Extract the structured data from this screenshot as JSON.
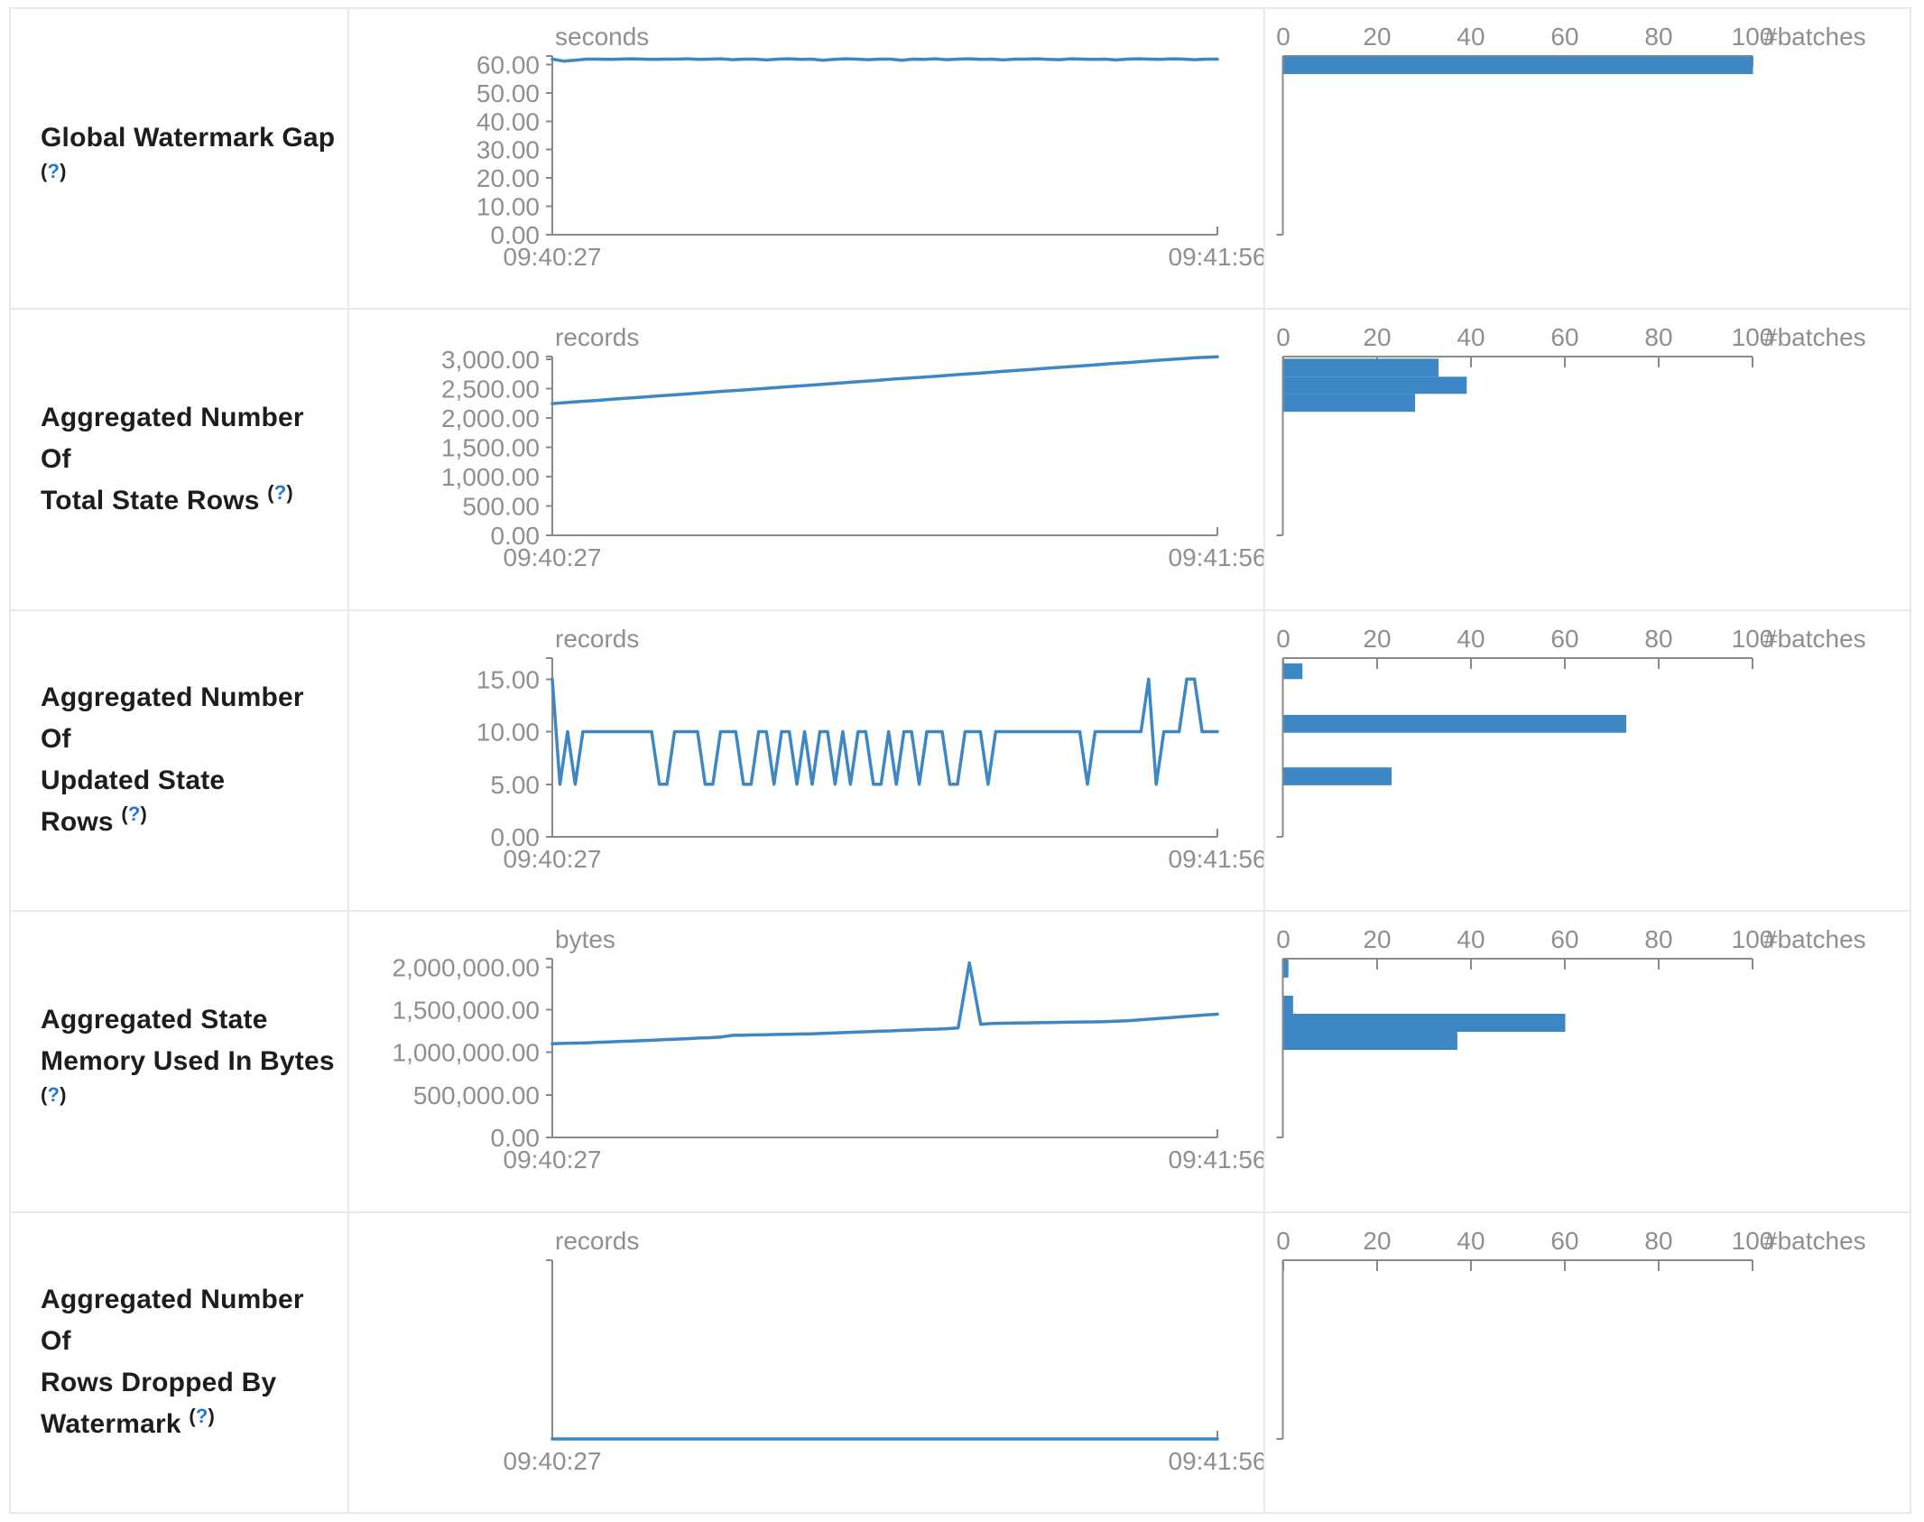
{
  "help_marker": {
    "open": "(",
    "q": "?",
    "close": ")"
  },
  "time_axis": {
    "start": "09:40:27",
    "end": "09:41:56"
  },
  "hist_axis": {
    "ticks": [
      "0",
      "20",
      "40",
      "60",
      "80",
      "100"
    ],
    "tick_values": [
      0,
      20,
      40,
      60,
      80,
      100
    ],
    "label": "#batches",
    "max": 100
  },
  "colors": {
    "accent": "#3d87c4",
    "axis": "#8a8a8a",
    "tick_text": "#8f8f8f",
    "label_text": "#1d1d1f",
    "help_link": "#2577d4",
    "border": "#e7e9eb"
  },
  "chart_data": [
    {
      "type": "line+histogram",
      "label_lines": [
        "Global Watermark Gap"
      ],
      "help_own_line": true,
      "unit": "seconds",
      "axis_max": 63,
      "y_tick_values": [
        0,
        10,
        20,
        30,
        40,
        50,
        60
      ],
      "y_tick_labels": [
        "0.00",
        "10.00",
        "20.00",
        "30.00",
        "40.00",
        "50.00",
        "60.00"
      ],
      "x_range": [
        "09:40:27",
        "09:41:56"
      ],
      "timeline": [
        61.9,
        61.2,
        61.5,
        61.9,
        61.9,
        61.8,
        61.9,
        62.0,
        61.9,
        61.8,
        61.9,
        61.9,
        62.0,
        61.8,
        61.9,
        62.0,
        61.7,
        61.9,
        61.9,
        61.6,
        61.9,
        62.0,
        61.8,
        61.9,
        61.5,
        61.8,
        62.0,
        61.9,
        61.7,
        61.9,
        61.9,
        61.5,
        61.9,
        61.8,
        62.0,
        61.7,
        61.9,
        62.0,
        61.8,
        61.9,
        61.6,
        61.9,
        61.9,
        62.0,
        61.8,
        61.7,
        62.0,
        61.9,
        61.8,
        61.9,
        61.6,
        61.9,
        62.0,
        61.9,
        61.8,
        62.0,
        61.9,
        61.7,
        61.9,
        61.9
      ],
      "histogram_bins": [
        {
          "hi": 62.8,
          "lo": 56.6,
          "count": 100
        }
      ]
    },
    {
      "type": "line+histogram",
      "label_lines": [
        "Aggregated Number Of",
        "Total State Rows"
      ],
      "help_own_line": false,
      "unit": "records",
      "axis_max": 3050,
      "y_tick_values": [
        0,
        500,
        1000,
        1500,
        2000,
        2500,
        3000
      ],
      "y_tick_labels": [
        "0.00",
        "500.00",
        "1,000.00",
        "1,500.00",
        "2,000.00",
        "2,500.00",
        "3,000.00"
      ],
      "x_range": [
        "09:40:27",
        "09:41:56"
      ],
      "timeline": [
        2248,
        2275,
        2300,
        2328,
        2352,
        2380,
        2405,
        2432,
        2458,
        2482,
        2510,
        2535,
        2562,
        2588,
        2615,
        2640,
        2668,
        2692,
        2718,
        2745,
        2770,
        2798,
        2822,
        2850,
        2875,
        2900,
        2928,
        2952,
        2980,
        3005,
        3030,
        3046
      ],
      "histogram_bins": [
        {
          "hi": 3015,
          "lo": 2707,
          "count": 33
        },
        {
          "hi": 2707,
          "lo": 2415,
          "count": 39
        },
        {
          "hi": 2415,
          "lo": 2107,
          "count": 28
        }
      ]
    },
    {
      "type": "line+histogram",
      "label_lines": [
        "Aggregated Number Of",
        "Updated State Rows"
      ],
      "help_own_line": false,
      "unit": "records",
      "axis_max": 17,
      "y_tick_values": [
        0,
        5,
        10,
        15
      ],
      "y_tick_labels": [
        "0.00",
        "5.00",
        "10.00",
        "15.00"
      ],
      "x_range": [
        "09:40:27",
        "09:41:56"
      ],
      "timeline": [
        15,
        5,
        10,
        5,
        10,
        10,
        10,
        10,
        10,
        10,
        10,
        10,
        10,
        10,
        5,
        5,
        10,
        10,
        10,
        10,
        5,
        5,
        10,
        10,
        10,
        5,
        5,
        10,
        10,
        5,
        10,
        10,
        5,
        10,
        5,
        10,
        10,
        5,
        10,
        5,
        10,
        10,
        5,
        5,
        10,
        5,
        10,
        10,
        5,
        10,
        10,
        10,
        5,
        5,
        10,
        10,
        10,
        5,
        10,
        10,
        10,
        10,
        10,
        10,
        10,
        10,
        10,
        10,
        10,
        10,
        5,
        10,
        10,
        10,
        10,
        10,
        10,
        10,
        15,
        5,
        10,
        10,
        10,
        15,
        15,
        10,
        10,
        10
      ],
      "histogram_bins": [
        {
          "hi": 16.5,
          "lo": 15.0,
          "count": 4
        },
        {
          "hi": 11.6,
          "lo": 9.9,
          "count": 73
        },
        {
          "hi": 6.6,
          "lo": 4.9,
          "count": 23
        }
      ]
    },
    {
      "type": "line+histogram",
      "label_lines": [
        "Aggregated State",
        "Memory Used In Bytes"
      ],
      "help_own_line": true,
      "unit": "bytes",
      "axis_max": 2100000,
      "y_tick_values": [
        0,
        500000,
        1000000,
        1500000,
        2000000
      ],
      "y_tick_labels": [
        "0.00",
        "500,000.00",
        "1,000,000.00",
        "1,500,000.00",
        "2,000,000.00"
      ],
      "x_range": [
        "09:40:27",
        "09:41:56"
      ],
      "timeline": [
        1100000,
        1105000,
        1108000,
        1112000,
        1118000,
        1122000,
        1128000,
        1132000,
        1138000,
        1142000,
        1150000,
        1155000,
        1160000,
        1168000,
        1172000,
        1180000,
        1200000,
        1202000,
        1205000,
        1207000,
        1210000,
        1212000,
        1215000,
        1218000,
        1222000,
        1228000,
        1232000,
        1238000,
        1242000,
        1248000,
        1252000,
        1258000,
        1262000,
        1268000,
        1272000,
        1278000,
        1285000,
        2050000,
        1330000,
        1340000,
        1342000,
        1344000,
        1346000,
        1348000,
        1350000,
        1352000,
        1354000,
        1356000,
        1358000,
        1360000,
        1365000,
        1370000,
        1380000,
        1390000,
        1400000,
        1410000,
        1420000,
        1430000,
        1440000,
        1448000
      ],
      "histogram_bins": [
        {
          "hi": 2090000,
          "lo": 1878000,
          "count": 1
        },
        {
          "hi": 1665000,
          "lo": 1453000,
          "count": 2
        },
        {
          "hi": 1453000,
          "lo": 1241000,
          "count": 60
        },
        {
          "hi": 1241000,
          "lo": 1029000,
          "count": 37
        }
      ]
    },
    {
      "type": "line+histogram",
      "label_lines": [
        "Aggregated Number Of",
        "Rows Dropped By",
        "Watermark"
      ],
      "help_own_line": false,
      "unit": "records",
      "axis_max": 1,
      "y_tick_values": [],
      "y_tick_labels": [],
      "x_range": [
        "09:40:27",
        "09:41:56"
      ],
      "timeline": [
        0,
        0
      ],
      "histogram_bins": []
    }
  ]
}
